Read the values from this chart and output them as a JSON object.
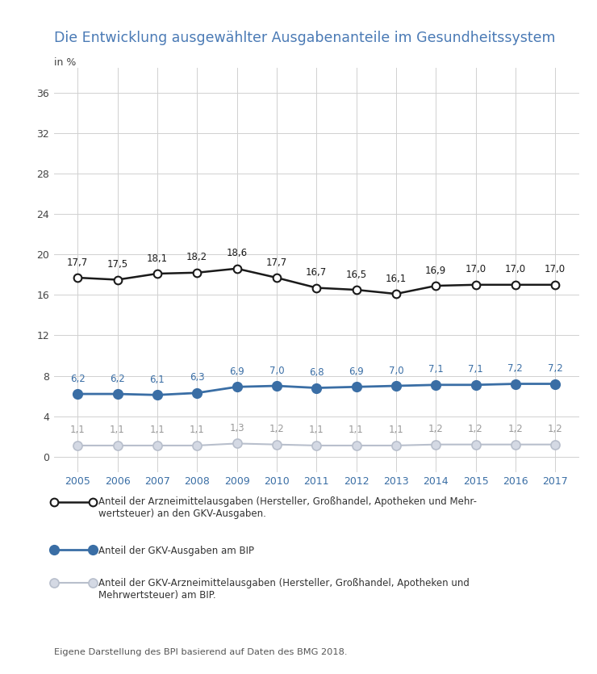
{
  "title": "Die Entwicklung ausgewählter Ausgabenanteile im Gesundheitssystem",
  "ylabel": "in %",
  "years": [
    2005,
    2006,
    2007,
    2008,
    2009,
    2010,
    2011,
    2012,
    2013,
    2014,
    2015,
    2016,
    2017
  ],
  "series1": [
    17.7,
    17.5,
    18.1,
    18.2,
    18.6,
    17.7,
    16.7,
    16.5,
    16.1,
    16.9,
    17.0,
    17.0,
    17.0
  ],
  "series2": [
    6.2,
    6.2,
    6.1,
    6.3,
    6.9,
    7.0,
    6.8,
    6.9,
    7.0,
    7.1,
    7.1,
    7.2,
    7.2
  ],
  "series3": [
    1.1,
    1.1,
    1.1,
    1.1,
    1.3,
    1.2,
    1.1,
    1.1,
    1.1,
    1.2,
    1.2,
    1.2,
    1.2
  ],
  "series1_color": "#1a1a1a",
  "series2_color": "#3a6ea5",
  "series3_color": "#b8bfcc",
  "series1_marker_facecolor": "#ffffff",
  "series2_marker_facecolor": "#3a6ea5",
  "series3_marker_facecolor": "#d4d9e4",
  "title_color": "#4a7ab5",
  "background_color": "#ffffff",
  "grid_color": "#d0d0d0",
  "yticks": [
    0,
    4,
    8,
    12,
    16,
    20,
    24,
    28,
    32,
    36
  ],
  "ylim": [
    -1.5,
    38.5
  ],
  "legend1": "Anteil der Arzneimittelausgaben (Hersteller, Großhandel, Apotheken und Mehr-\nwertsteuer) an den GKV-Ausgaben.",
  "legend2": "Anteil der GKV-Ausgaben am BIP",
  "legend3": "Anteil der GKV-Arzneimittelausgaben (Hersteller, Großhandel, Apotheken und\nMehrwertsteuer) am BIP.",
  "footnote": "Eigene Darstellung des BPI basierend auf Daten des BMG 2018.",
  "title_fontsize": 12.5,
  "tick_fontsize": 9,
  "annotation_fontsize": 8.5,
  "legend_fontsize": 8.5
}
